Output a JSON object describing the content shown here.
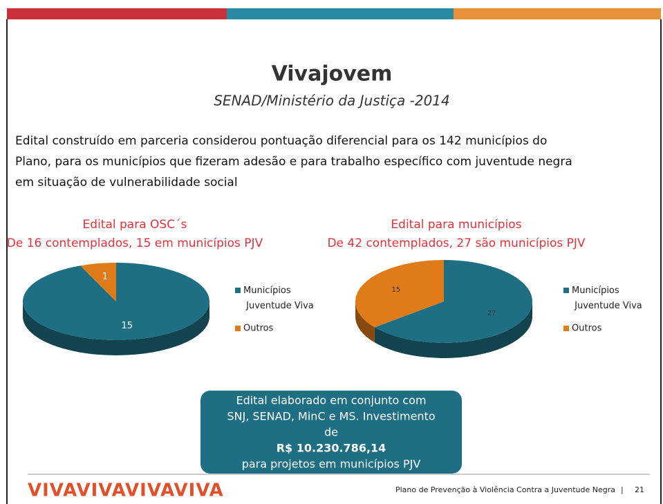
{
  "slide": {
    "title": "Vivajovem",
    "subtitle": "SENAD/Ministério da Justiça -2014",
    "body": [
      "Edital construído em parceria considerou pontuação diferencial para os 142  municípios   do",
      "Plano, para os municípios que fizeram adesão e para trabalho específico com  juventude negra",
      "em situação de vulnerabilidade social"
    ],
    "box": [
      "Edital elaborado em conjunto com",
      "SNJ, SENAD, MinC e MS. Investimento",
      "de",
      "R$ 10.230.786,14",
      "para projetos em municípios PJV"
    ],
    "logo": "VIVAVIVAVIVAVIVA",
    "footer": "Plano de Prevenção à Violência Contra a Juventude Negra",
    "page": "21"
  },
  "chart_data": [
    {
      "type": "pie",
      "title": "Edital para OSC´s",
      "subtitle": "De 16 contemplados, 15 em municípios PJV",
      "categories": [
        "Municípios Juventude Viva",
        "Outros"
      ],
      "values": [
        15,
        1
      ],
      "colors": [
        "#1e6f84",
        "#e07b1a"
      ]
    },
    {
      "type": "pie",
      "title": "Edital para municípios",
      "subtitle": "De 42 contemplados, 27 são municípios PJV",
      "categories": [
        "Municípios Juventude Viva",
        "Outros"
      ],
      "values": [
        27,
        15
      ],
      "colors": [
        "#1e6f84",
        "#e07b1a"
      ]
    }
  ]
}
